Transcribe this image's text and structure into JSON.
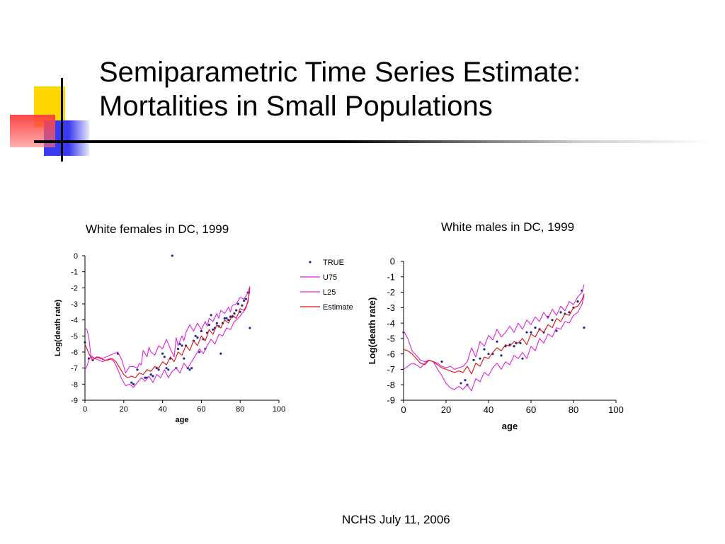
{
  "slide": {
    "title_line1": "Semiparametric Time Series Estimate:",
    "title_line2": "Mortalities in Small Populations",
    "footer": "NCHS  July 11, 2006"
  },
  "colors": {
    "true_points": "#1f2a8a",
    "bands": "#e020e0",
    "estimate": "#e01010",
    "accent_yellow": "#ffd700",
    "accent_blue": "#3a3af0",
    "accent_red": "#ff4040"
  },
  "chart_data": [
    {
      "type": "line",
      "title": "White females in DC, 1999",
      "xlabel": "age",
      "ylabel": "Log(death rate)",
      "xlim": [
        0,
        100
      ],
      "ylim": [
        -9,
        0
      ],
      "xticks": [
        0,
        20,
        40,
        60,
        80,
        100
      ],
      "yticks": [
        0,
        -1,
        -2,
        -3,
        -4,
        -5,
        -6,
        -7,
        -8,
        -9
      ],
      "legend_position": "right",
      "series": [
        {
          "name": "TRUE",
          "kind": "scatter",
          "x": [
            0,
            2,
            4,
            17,
            24,
            25,
            27,
            31,
            32,
            34,
            35,
            37,
            38,
            40,
            41,
            42,
            43,
            44,
            45,
            47,
            48,
            49,
            50,
            51,
            52,
            53,
            54,
            55,
            56,
            57,
            58,
            59,
            60,
            61,
            62,
            63,
            64,
            65,
            66,
            67,
            68,
            69,
            70,
            71,
            72,
            73,
            74,
            75,
            76,
            77,
            78,
            79,
            80,
            81,
            82,
            83,
            84,
            85
          ],
          "y": [
            -5.4,
            -6.4,
            -6.5,
            -6.1,
            -7.9,
            -8.0,
            -7.1,
            -7.6,
            -7.6,
            -7.4,
            -7.5,
            -7.0,
            -7.1,
            -6.1,
            -6.3,
            -7.0,
            -7.1,
            -6.4,
            0,
            -7.0,
            -5.8,
            -5.5,
            -5.6,
            -6.4,
            -5.6,
            -7.0,
            -7.1,
            -7.0,
            -5.3,
            -5.0,
            -5.1,
            -6.0,
            -4.7,
            -5.2,
            -5.8,
            -4.8,
            -4.3,
            -3.7,
            -4.6,
            -4.5,
            -4.2,
            -4.4,
            -6.1,
            -4.2,
            -3.9,
            -3.9,
            -4.0,
            -3.8,
            -3.8,
            -3.6,
            -3.4,
            -3.0,
            -3.5,
            -3.1,
            -2.8,
            -2.7,
            -2.3,
            -4.5
          ]
        },
        {
          "name": "U75",
          "kind": "line",
          "x": [
            0,
            1,
            2,
            3,
            5,
            7,
            9,
            11,
            13,
            15,
            17,
            19,
            21,
            23,
            25,
            27,
            28,
            29,
            30,
            32,
            33,
            34,
            36,
            38,
            40,
            42,
            44,
            46,
            47,
            48,
            50,
            51,
            52,
            54,
            56,
            58,
            60,
            62,
            63,
            64,
            66,
            68,
            69,
            70,
            72,
            74,
            75,
            76,
            78,
            80,
            82,
            84,
            85
          ],
          "y": [
            -4.5,
            -4.6,
            -5.1,
            -6.2,
            -6.4,
            -6.3,
            -6.4,
            -6.3,
            -6.2,
            -6.1,
            -6.0,
            -6.5,
            -7.3,
            -6.9,
            -6.9,
            -7.0,
            -6.7,
            -6.8,
            -5.9,
            -6.3,
            -5.7,
            -6.0,
            -6.2,
            -5.6,
            -5.8,
            -5.2,
            -5.8,
            -6.3,
            -5.1,
            -5.6,
            -5.0,
            -5.3,
            -4.8,
            -4.3,
            -4.7,
            -4.2,
            -4.6,
            -4.1,
            -4.4,
            -3.9,
            -4.1,
            -3.6,
            -3.9,
            -3.4,
            -3.6,
            -3.2,
            -3.5,
            -3.1,
            -3.0,
            -2.6,
            -2.7,
            -2.3,
            -1.9
          ]
        },
        {
          "name": "L25",
          "kind": "line",
          "x": [
            0,
            1,
            2,
            3,
            5,
            7,
            9,
            11,
            13,
            15,
            17,
            19,
            21,
            23,
            25,
            27,
            29,
            31,
            33,
            35,
            37,
            39,
            41,
            43,
            45,
            47,
            49,
            51,
            53,
            55,
            57,
            59,
            61,
            63,
            65,
            67,
            69,
            71,
            73,
            75,
            77,
            79,
            81,
            83,
            85
          ],
          "y": [
            -7.1,
            -6.9,
            -6.5,
            -6.3,
            -6.4,
            -6.5,
            -6.6,
            -6.5,
            -6.4,
            -6.6,
            -7.1,
            -7.7,
            -8.1,
            -8.0,
            -8.2,
            -7.9,
            -7.6,
            -7.8,
            -7.5,
            -7.9,
            -7.4,
            -7.6,
            -7.1,
            -7.6,
            -7.2,
            -7.0,
            -7.3,
            -6.7,
            -7.0,
            -6.6,
            -6.2,
            -5.8,
            -6.1,
            -5.6,
            -5.2,
            -5.5,
            -4.9,
            -5.0,
            -4.5,
            -4.6,
            -4.1,
            -3.9,
            -3.6,
            -3.3,
            -2.2
          ]
        },
        {
          "name": "Estimate",
          "kind": "line",
          "x": [
            0,
            2,
            4,
            6,
            8,
            10,
            12,
            14,
            16,
            18,
            20,
            22,
            24,
            26,
            28,
            30,
            32,
            34,
            36,
            38,
            40,
            42,
            44,
            46,
            48,
            50,
            52,
            54,
            56,
            58,
            60,
            62,
            64,
            66,
            68,
            70,
            72,
            74,
            76,
            78,
            80,
            82,
            84,
            85
          ],
          "y": [
            -5.5,
            -6.1,
            -6.5,
            -6.3,
            -6.4,
            -6.5,
            -6.5,
            -6.4,
            -6.6,
            -7.0,
            -7.4,
            -7.6,
            -7.5,
            -7.6,
            -7.3,
            -7.4,
            -7.1,
            -7.2,
            -6.9,
            -7.0,
            -6.6,
            -6.8,
            -6.3,
            -6.6,
            -6.0,
            -6.2,
            -5.6,
            -5.9,
            -5.3,
            -5.6,
            -5.0,
            -5.3,
            -4.6,
            -4.9,
            -4.3,
            -4.5,
            -4.0,
            -4.2,
            -3.7,
            -3.9,
            -3.3,
            -3.4,
            -2.9,
            -2.0
          ]
        }
      ]
    },
    {
      "type": "line",
      "title": "White males in DC, 1999",
      "xlabel": "age",
      "ylabel": "Log(death rate)",
      "xlim": [
        0,
        100
      ],
      "ylim": [
        -9,
        0
      ],
      "xticks": [
        0,
        20,
        40,
        60,
        80,
        100
      ],
      "yticks": [
        0,
        -1,
        -2,
        -3,
        -4,
        -5,
        -6,
        -7,
        -8,
        -9
      ],
      "series": [
        {
          "name": "TRUE",
          "kind": "scatter",
          "x": [
            0,
            18,
            27,
            29,
            30,
            33,
            36,
            38,
            40,
            42,
            44,
            46,
            48,
            50,
            52,
            53,
            55,
            56,
            58,
            60,
            62,
            64,
            66,
            68,
            70,
            72,
            74,
            76,
            78,
            80,
            82,
            84,
            85
          ],
          "y": [
            -4.6,
            -6.5,
            -7.9,
            -7.7,
            -8.0,
            -6.4,
            -6.3,
            -5.7,
            -6.0,
            -6.0,
            -5.2,
            -6.1,
            -5.5,
            -5.4,
            -5.5,
            -5.3,
            -5.3,
            -6.3,
            -4.6,
            -4.6,
            -4.3,
            -4.4,
            -4.6,
            -3.6,
            -3.8,
            -4.5,
            -3.3,
            -3.4,
            -3.3,
            -3.0,
            -2.6,
            -1.9,
            -4.3
          ]
        },
        {
          "name": "U75",
          "kind": "line",
          "x": [
            0,
            2,
            4,
            6,
            8,
            10,
            12,
            14,
            16,
            18,
            20,
            22,
            24,
            26,
            28,
            30,
            32,
            34,
            36,
            38,
            40,
            42,
            44,
            46,
            48,
            50,
            52,
            54,
            56,
            58,
            60,
            62,
            64,
            66,
            68,
            70,
            72,
            74,
            76,
            78,
            80,
            82,
            84,
            85
          ],
          "y": [
            -4.5,
            -5.0,
            -5.8,
            -6.1,
            -6.4,
            -6.5,
            -6.4,
            -6.5,
            -6.6,
            -6.8,
            -6.9,
            -6.8,
            -7.0,
            -6.9,
            -6.8,
            -6.5,
            -5.6,
            -6.2,
            -5.2,
            -5.5,
            -4.8,
            -5.1,
            -4.4,
            -4.9,
            -4.6,
            -4.2,
            -4.6,
            -4.0,
            -4.4,
            -3.8,
            -4.1,
            -3.6,
            -3.9,
            -3.3,
            -3.7,
            -3.1,
            -3.5,
            -2.9,
            -3.2,
            -2.6,
            -2.8,
            -2.3,
            -2.0,
            -1.5
          ]
        },
        {
          "name": "L25",
          "kind": "line",
          "x": [
            0,
            2,
            4,
            6,
            8,
            10,
            12,
            14,
            16,
            18,
            20,
            22,
            24,
            26,
            28,
            30,
            32,
            34,
            36,
            38,
            40,
            42,
            44,
            46,
            48,
            50,
            52,
            54,
            56,
            58,
            60,
            62,
            64,
            66,
            68,
            70,
            72,
            74,
            76,
            78,
            80,
            82,
            84,
            85
          ],
          "y": [
            -7.0,
            -6.8,
            -6.6,
            -6.7,
            -6.9,
            -6.6,
            -6.4,
            -6.5,
            -7.0,
            -7.4,
            -7.9,
            -8.2,
            -8.3,
            -8.1,
            -8.3,
            -8.0,
            -8.4,
            -7.6,
            -7.8,
            -7.2,
            -7.4,
            -6.9,
            -6.6,
            -7.0,
            -6.5,
            -6.7,
            -6.1,
            -6.3,
            -5.9,
            -6.3,
            -5.5,
            -5.8,
            -5.0,
            -5.3,
            -4.7,
            -4.9,
            -4.3,
            -4.4,
            -3.9,
            -4.0,
            -3.5,
            -3.3,
            -2.8,
            -2.2
          ]
        },
        {
          "name": "Estimate",
          "kind": "line",
          "x": [
            0,
            2,
            4,
            6,
            8,
            10,
            12,
            14,
            16,
            18,
            20,
            22,
            24,
            26,
            28,
            30,
            32,
            34,
            36,
            38,
            40,
            42,
            44,
            46,
            48,
            50,
            52,
            54,
            56,
            58,
            60,
            62,
            64,
            66,
            68,
            70,
            72,
            74,
            76,
            78,
            80,
            82,
            84,
            85
          ],
          "y": [
            -5.7,
            -5.8,
            -6.0,
            -6.3,
            -6.6,
            -6.7,
            -6.4,
            -6.5,
            -6.7,
            -6.9,
            -7.0,
            -7.1,
            -7.2,
            -7.1,
            -7.2,
            -6.8,
            -7.3,
            -6.6,
            -6.8,
            -6.2,
            -6.3,
            -5.9,
            -5.6,
            -5.8,
            -5.4,
            -5.5,
            -5.2,
            -5.3,
            -5.0,
            -5.4,
            -4.7,
            -4.9,
            -4.4,
            -4.6,
            -4.1,
            -4.3,
            -3.7,
            -3.9,
            -3.4,
            -3.5,
            -3.0,
            -2.9,
            -2.5,
            -2.1
          ]
        }
      ]
    }
  ]
}
